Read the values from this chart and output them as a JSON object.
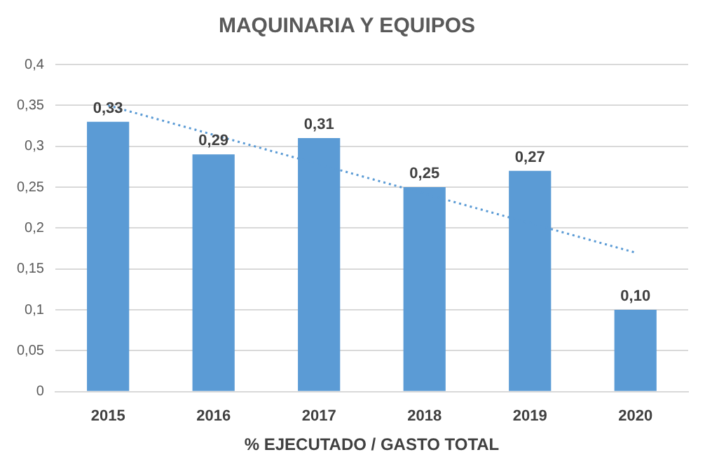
{
  "chart_data": {
    "type": "bar",
    "title": "MAQUINARIA Y EQUIPOS",
    "xlabel": "% EJECUTADO / GASTO TOTAL",
    "categories": [
      "2015",
      "2016",
      "2017",
      "2018",
      "2019",
      "2020"
    ],
    "series": [
      {
        "color": "#5b9bd5",
        "values": [
          0.33,
          0.29,
          0.31,
          0.25,
          0.27,
          0.1
        ],
        "value_labels": [
          "0,33",
          "0,29",
          "0,31",
          "0,25",
          "0,27",
          "0,10"
        ]
      },
      {
        "type": "line",
        "color": "#5b9bd5",
        "line_style": "dotted",
        "marker": "none",
        "values": [
          0.35,
          null,
          null,
          null,
          null,
          0.17
        ]
      }
    ],
    "ylim": [
      0,
      0.4
    ],
    "yticks": [
      0,
      {
        "value": 0.05,
        "label": "0,05"
      },
      {
        "value": 0.1,
        "label": "0,1"
      },
      {
        "value": 0.15,
        "label": "0,15"
      },
      {
        "value": 0.2,
        "label": "0,2"
      },
      {
        "value": 0.25,
        "label": "0,25"
      },
      {
        "value": 0.3,
        "label": "0,3"
      },
      {
        "value": 0.35,
        "label": "0,35"
      },
      {
        "value": 0.4,
        "label": "0,4"
      }
    ],
    "grid": "y",
    "legend": false
  }
}
